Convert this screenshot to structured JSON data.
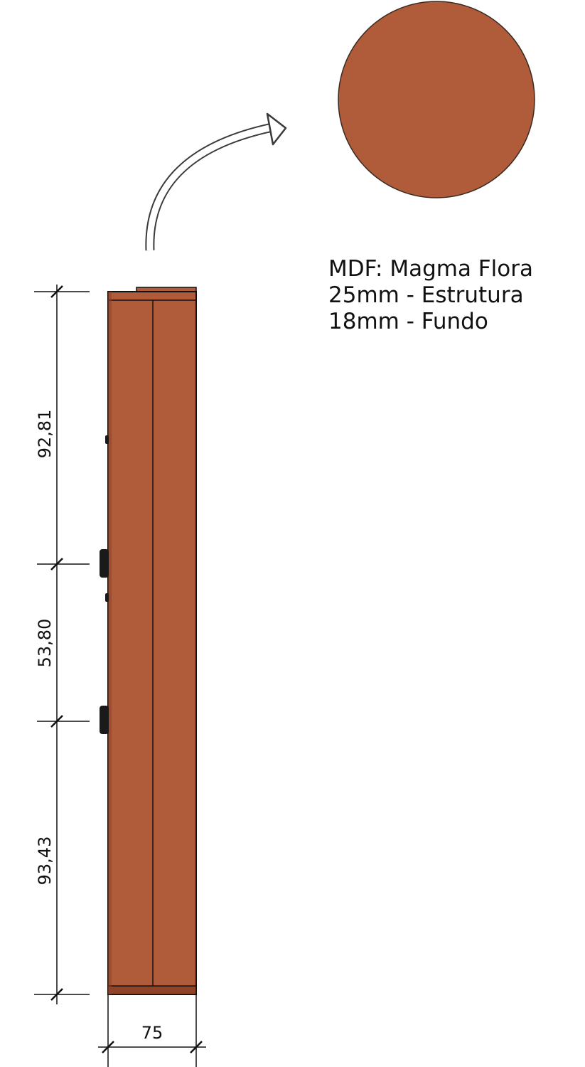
{
  "material_swatch": {
    "color": "#b05c3a",
    "label_lines": [
      "MDF: Magma Flora",
      "25mm - Estrutura",
      "18mm - Fundo"
    ]
  },
  "dimensions": {
    "vertical": [
      "92,81",
      "53,80",
      "93,43"
    ],
    "horizontal": [
      "75"
    ]
  },
  "colors": {
    "wood": "#b05c3a",
    "wood_shadow": "#8f4428",
    "line": "#111111"
  }
}
